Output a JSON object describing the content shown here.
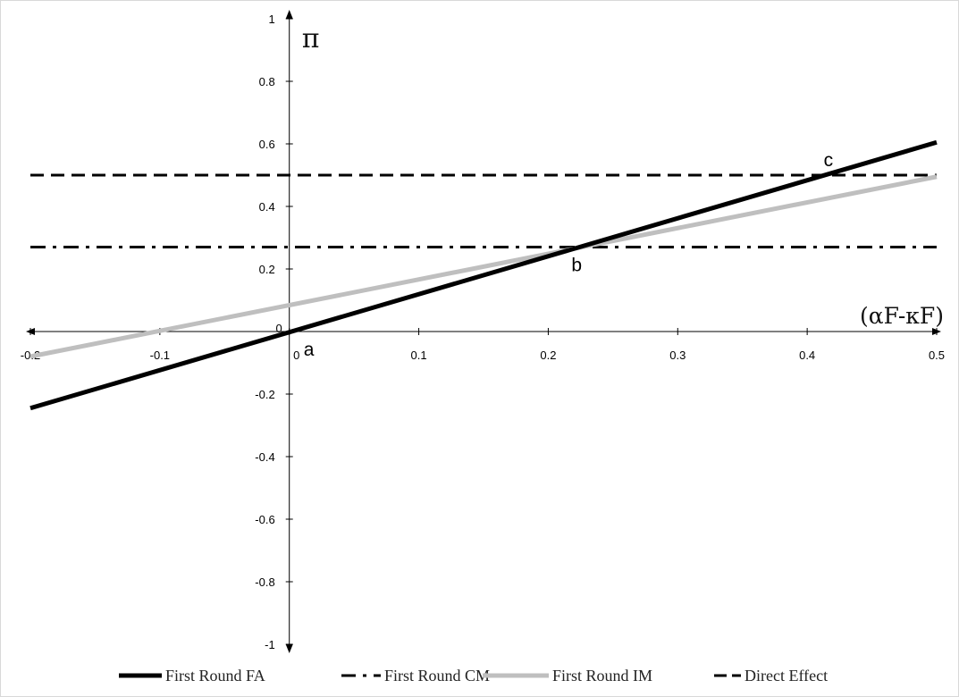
{
  "chart_data": {
    "type": "line",
    "xlabel": "(αF-κF)",
    "ylabel": "π",
    "xlim": [
      -0.2,
      0.5
    ],
    "ylim": [
      -1,
      1
    ],
    "x_ticks": [
      "-0.2",
      "-0.1",
      "0",
      "0.1",
      "0.2",
      "0.3",
      "0.4",
      "0.5"
    ],
    "y_ticks": [
      "1",
      "0.8",
      "0.6",
      "0.4",
      "0.2",
      "0",
      "-0.2",
      "-0.4",
      "-0.6",
      "-0.8",
      "-1"
    ],
    "grid": false,
    "legend_position": "bottom",
    "series": [
      {
        "name": "First Round FA",
        "style": "solid",
        "color": "#000000",
        "x": [
          -0.2,
          0.5
        ],
        "y": [
          -0.245,
          0.605
        ]
      },
      {
        "name": "First Round CM",
        "style": "dash-dot",
        "color": "#000000",
        "x": [
          -0.2,
          0.5
        ],
        "y": [
          0.27,
          0.27
        ]
      },
      {
        "name": "First Round IM",
        "style": "solid",
        "color": "#bfbfbf",
        "x": [
          -0.2,
          0.5
        ],
        "y": [
          -0.08,
          0.495
        ]
      },
      {
        "name": "Direct Effect",
        "style": "dashed",
        "color": "#000000",
        "x": [
          -0.2,
          0.5
        ],
        "y": [
          0.5,
          0.5
        ]
      }
    ],
    "annotations": [
      {
        "text": "a",
        "x": 0.0,
        "y": 0.0
      },
      {
        "text": "b",
        "x": 0.22,
        "y": 0.27
      },
      {
        "text": "c",
        "x": 0.41,
        "y": 0.5
      }
    ]
  }
}
